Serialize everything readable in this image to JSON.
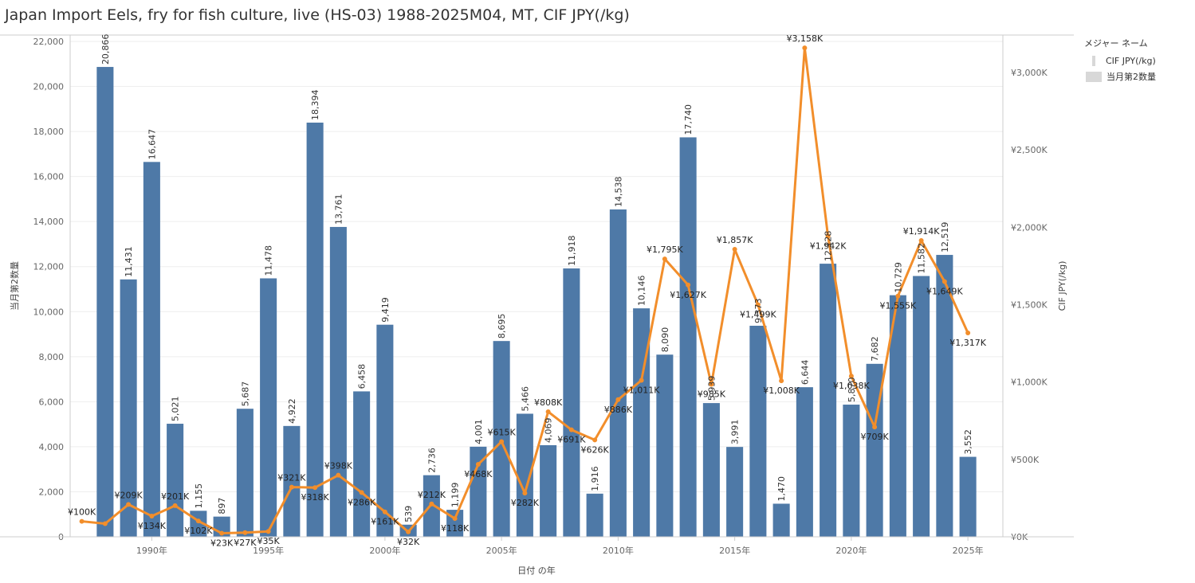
{
  "title": "Japan Import Eels, fry for fish culture, live (HS-03) 1988-2025M04, MT, CIF JPY(/kg)",
  "legend": {
    "title": "メジャー ネーム",
    "items": [
      {
        "label": "CIF JPY(/kg)",
        "kind": "line"
      },
      {
        "label": "当月第2数量",
        "kind": "bar"
      }
    ]
  },
  "colors": {
    "bar": "#4e79a7",
    "line": "#f28e2b",
    "grid": "#eeeeee",
    "axis": "#cccccc"
  },
  "chart_data": {
    "type": "bar",
    "xlabel": "日付 の年",
    "ylabel": "当月第2数量",
    "y2label": "CIF JPY(/kg)",
    "ylim": [
      0,
      22000
    ],
    "y2lim": [
      0,
      3200000
    ],
    "xlim": [
      1987,
      2026
    ],
    "yticks": [
      0,
      2000,
      4000,
      6000,
      8000,
      10000,
      12000,
      14000,
      16000,
      18000,
      20000,
      22000
    ],
    "yticklabels": [
      "0",
      "2,000",
      "4,000",
      "6,000",
      "8,000",
      "10,000",
      "12,000",
      "14,000",
      "16,000",
      "18,000",
      "20,000",
      "22,000"
    ],
    "y2ticks": [
      0,
      500000,
      1000000,
      1500000,
      2000000,
      2500000,
      3000000
    ],
    "y2ticklabels": [
      "¥0K",
      "¥500K",
      "¥1,000K",
      "¥1,500K",
      "¥2,000K",
      "¥2,500K",
      "¥3,000K"
    ],
    "xticks": [
      1990,
      1995,
      2000,
      2005,
      2010,
      2015,
      2020,
      2025
    ],
    "xticklabels": [
      "1990年",
      "1995年",
      "2000年",
      "2005年",
      "2010年",
      "2015年",
      "2020年",
      "2025年"
    ],
    "grid": true,
    "legend_position": "top-right",
    "series": [
      {
        "name": "当月第2数量",
        "type": "bar",
        "axis": "left",
        "points": [
          {
            "x": 1988,
            "value": 20866,
            "label": "20,866"
          },
          {
            "x": 1989,
            "value": 11431,
            "label": "11,431"
          },
          {
            "x": 1990,
            "value": 16647,
            "label": "16,647"
          },
          {
            "x": 1991,
            "value": 5021,
            "label": "5,021"
          },
          {
            "x": 1992,
            "value": 1155,
            "label": "1,155"
          },
          {
            "x": 1993,
            "value": 897,
            "label": "897"
          },
          {
            "x": 1994,
            "value": 5687,
            "label": "5,687"
          },
          {
            "x": 1995,
            "value": 11478,
            "label": "11,478"
          },
          {
            "x": 1996,
            "value": 4922,
            "label": "4,922"
          },
          {
            "x": 1997,
            "value": 18394,
            "label": "18,394"
          },
          {
            "x": 1998,
            "value": 13761,
            "label": "13,761"
          },
          {
            "x": 1999,
            "value": 6458,
            "label": "6,458"
          },
          {
            "x": 2000,
            "value": 9419,
            "label": "9,419"
          },
          {
            "x": 2001,
            "value": 539,
            "label": "539"
          },
          {
            "x": 2002,
            "value": 2736,
            "label": "2,736"
          },
          {
            "x": 2003,
            "value": 1199,
            "label": "1,199"
          },
          {
            "x": 2004,
            "value": 4001,
            "label": "4,001"
          },
          {
            "x": 2005,
            "value": 8695,
            "label": "8,695"
          },
          {
            "x": 2006,
            "value": 5466,
            "label": "5,466"
          },
          {
            "x": 2007,
            "value": 4069,
            "label": "4,069"
          },
          {
            "x": 2008,
            "value": 11918,
            "label": "11,918"
          },
          {
            "x": 2009,
            "value": 1916,
            "label": "1,916"
          },
          {
            "x": 2010,
            "value": 14538,
            "label": "14,538"
          },
          {
            "x": 2011,
            "value": 10146,
            "label": "10,146"
          },
          {
            "x": 2012,
            "value": 8090,
            "label": "8,090"
          },
          {
            "x": 2013,
            "value": 17740,
            "label": "17,740"
          },
          {
            "x": 2014,
            "value": 5939,
            "label": "5,939"
          },
          {
            "x": 2015,
            "value": 3991,
            "label": "3,991"
          },
          {
            "x": 2016,
            "value": 9373,
            "label": "9,373"
          },
          {
            "x": 2017,
            "value": 1470,
            "label": "1,470"
          },
          {
            "x": 2018,
            "value": 6644,
            "label": "6,644"
          },
          {
            "x": 2019,
            "value": 12128,
            "label": "12,128"
          },
          {
            "x": 2020,
            "value": 5870,
            "label": "5,870"
          },
          {
            "x": 2021,
            "value": 7682,
            "label": "7,682"
          },
          {
            "x": 2022,
            "value": 10729,
            "label": "10,729"
          },
          {
            "x": 2023,
            "value": 11582,
            "label": "11,582"
          },
          {
            "x": 2024,
            "value": 12519,
            "label": "12,519"
          },
          {
            "x": 2025,
            "value": 3552,
            "label": "3,552"
          }
        ]
      },
      {
        "name": "CIF JPY(/kg)",
        "type": "line",
        "axis": "right",
        "points": [
          {
            "x": 1987,
            "value": 100000,
            "label": "¥100K"
          },
          {
            "x": 1988,
            "value": 85000,
            "label": ""
          },
          {
            "x": 1989,
            "value": 209000,
            "label": "¥209K"
          },
          {
            "x": 1990,
            "value": 134000,
            "label": "¥134K"
          },
          {
            "x": 1991,
            "value": 201000,
            "label": "¥201K"
          },
          {
            "x": 1992,
            "value": 102000,
            "label": "¥102K"
          },
          {
            "x": 1993,
            "value": 23000,
            "label": "¥23K"
          },
          {
            "x": 1994,
            "value": 27000,
            "label": "¥27K"
          },
          {
            "x": 1995,
            "value": 35000,
            "label": "¥35K"
          },
          {
            "x": 1996,
            "value": 321000,
            "label": "¥321K"
          },
          {
            "x": 1997,
            "value": 318000,
            "label": "¥318K"
          },
          {
            "x": 1998,
            "value": 398000,
            "label": "¥398K"
          },
          {
            "x": 1999,
            "value": 286000,
            "label": "¥286K"
          },
          {
            "x": 2000,
            "value": 161000,
            "label": "¥161K"
          },
          {
            "x": 2001,
            "value": 32000,
            "label": "¥32K"
          },
          {
            "x": 2002,
            "value": 212000,
            "label": "¥212K"
          },
          {
            "x": 2003,
            "value": 118000,
            "label": "¥118K"
          },
          {
            "x": 2004,
            "value": 468000,
            "label": "¥468K"
          },
          {
            "x": 2005,
            "value": 615000,
            "label": "¥615K"
          },
          {
            "x": 2006,
            "value": 282000,
            "label": "¥282K"
          },
          {
            "x": 2007,
            "value": 808000,
            "label": "¥808K"
          },
          {
            "x": 2008,
            "value": 691000,
            "label": "¥691K"
          },
          {
            "x": 2009,
            "value": 626000,
            "label": "¥626K"
          },
          {
            "x": 2010,
            "value": 886000,
            "label": "¥886K"
          },
          {
            "x": 2011,
            "value": 1011000,
            "label": "¥1,011K"
          },
          {
            "x": 2012,
            "value": 1795000,
            "label": "¥1,795K"
          },
          {
            "x": 2013,
            "value": 1627000,
            "label": "¥1,627K"
          },
          {
            "x": 2014,
            "value": 985000,
            "label": "¥985K"
          },
          {
            "x": 2015,
            "value": 1857000,
            "label": "¥1,857K"
          },
          {
            "x": 2016,
            "value": 1499000,
            "label": "¥1,499K"
          },
          {
            "x": 2017,
            "value": 1008000,
            "label": "¥1,008K"
          },
          {
            "x": 2018,
            "value": 3158000,
            "label": "¥3,158K"
          },
          {
            "x": 2019,
            "value": 1942000,
            "label": "¥1,942K"
          },
          {
            "x": 2020,
            "value": 1038000,
            "label": "¥1,038K"
          },
          {
            "x": 2021,
            "value": 709000,
            "label": "¥709K"
          },
          {
            "x": 2022,
            "value": 1555000,
            "label": "¥1,555K"
          },
          {
            "x": 2023,
            "value": 1914000,
            "label": "¥1,914K"
          },
          {
            "x": 2024,
            "value": 1649000,
            "label": "¥1,649K"
          },
          {
            "x": 2025,
            "value": 1317000,
            "label": "¥1,317K"
          }
        ]
      }
    ]
  }
}
